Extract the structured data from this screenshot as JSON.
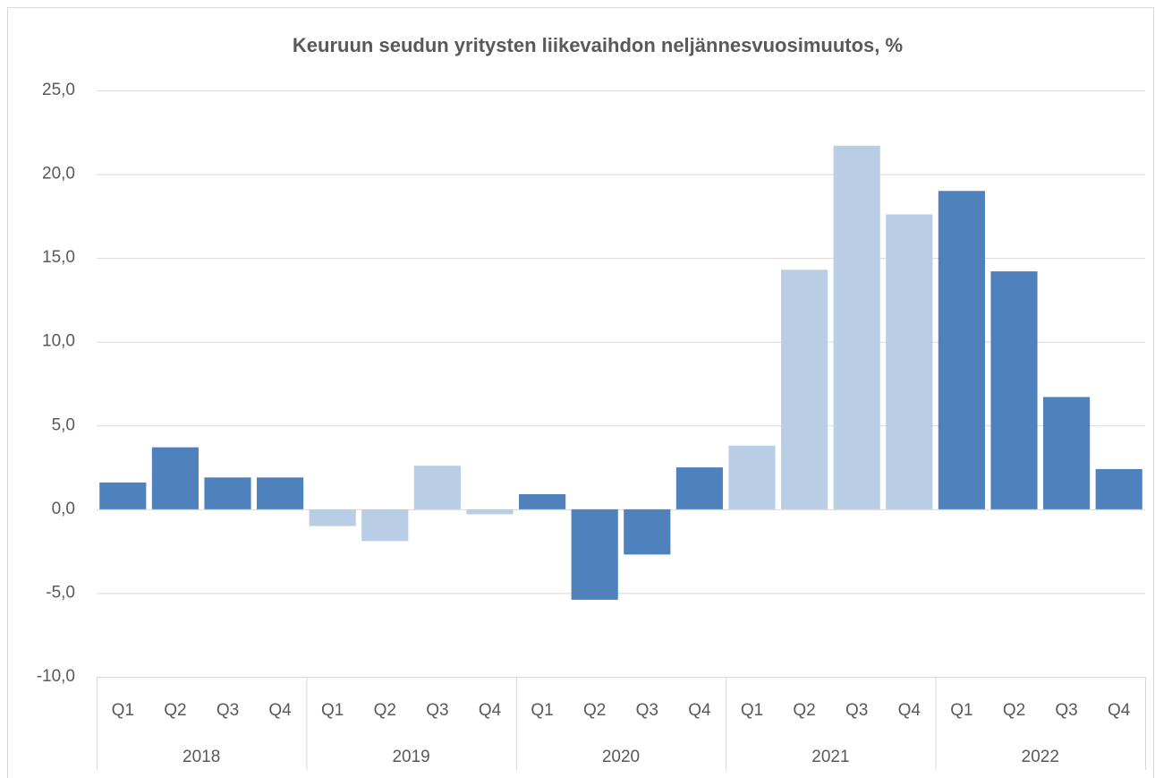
{
  "chart_data": {
    "type": "bar",
    "title": "Keuruun seudun yritysten liikevaihdon neljännesvuosimuutos, %",
    "groups": [
      {
        "name": "2018",
        "color": "#4f81bd",
        "categories": [
          "Q1",
          "Q2",
          "Q3",
          "Q4"
        ],
        "values": [
          1.6,
          3.7,
          1.9,
          1.9
        ]
      },
      {
        "name": "2019",
        "color": "#b9cde5",
        "categories": [
          "Q1",
          "Q2",
          "Q3",
          "Q4"
        ],
        "values": [
          -1.0,
          -1.9,
          2.6,
          -0.3
        ]
      },
      {
        "name": "2020",
        "color": "#4f81bd",
        "categories": [
          "Q1",
          "Q2",
          "Q3",
          "Q4"
        ],
        "values": [
          0.9,
          -5.4,
          -2.7,
          2.5
        ]
      },
      {
        "name": "2021",
        "color": "#b9cde5",
        "categories": [
          "Q1",
          "Q2",
          "Q3",
          "Q4"
        ],
        "values": [
          3.8,
          14.3,
          21.7,
          17.6
        ]
      },
      {
        "name": "2022",
        "color": "#4f81bd",
        "categories": [
          "Q1",
          "Q2",
          "Q3",
          "Q4"
        ],
        "values": [
          19.0,
          14.2,
          6.7,
          2.4
        ]
      }
    ],
    "ylim": [
      -10,
      25
    ],
    "yticks": [
      {
        "value": -10,
        "label": "-10,0"
      },
      {
        "value": -5,
        "label": "-5,0"
      },
      {
        "value": 0,
        "label": "0,0"
      },
      {
        "value": 5,
        "label": "5,0"
      },
      {
        "value": 10,
        "label": "10,0"
      },
      {
        "value": 15,
        "label": "15,0"
      },
      {
        "value": 20,
        "label": "20,0"
      },
      {
        "value": 25,
        "label": "25,0"
      }
    ],
    "grid": true
  }
}
